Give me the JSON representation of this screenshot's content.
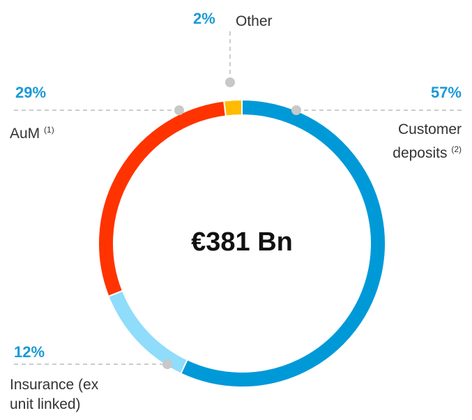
{
  "chart_data": {
    "type": "donut",
    "center_label": "€381 Bn",
    "categories": [
      "Customer deposits",
      "Insurance (ex unit linked)",
      "AuM",
      "Other"
    ],
    "footnotes": {
      "0": "(2)",
      "2": "(1)"
    },
    "values": [
      57,
      12,
      29,
      2
    ],
    "value_labels": [
      "57%",
      "12%",
      "29%",
      "2%"
    ],
    "colors": [
      "#0099d8",
      "#8fdcfb",
      "#ff3300",
      "#ffbb00"
    ],
    "label_color": "#1a9ad6"
  }
}
